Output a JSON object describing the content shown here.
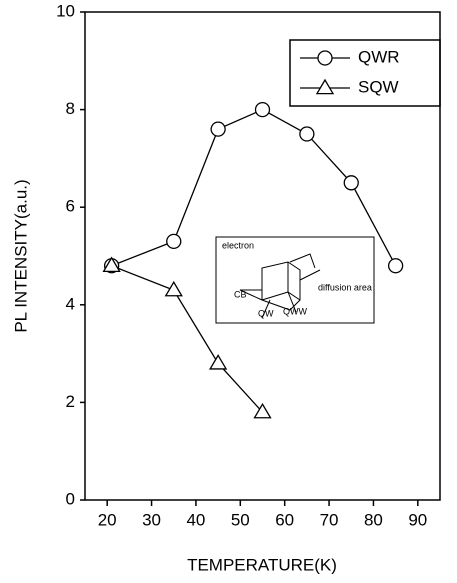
{
  "chart_data": {
    "type": "line",
    "xlabel": "TEMPERATURE(K)",
    "ylabel": "PL INTENSITY(a.u.)",
    "xlim": [
      15,
      95
    ],
    "xticks": [
      20,
      30,
      40,
      50,
      60,
      70,
      80,
      90
    ],
    "ylim": [
      0,
      10
    ],
    "yticks": [
      0,
      2,
      4,
      6,
      8,
      10
    ],
    "grid": false,
    "legend": "upper right",
    "series": [
      {
        "name": "QWR",
        "color": "#000000",
        "marker": "circle",
        "x": [
          21,
          35,
          45,
          55,
          65,
          75,
          85
        ],
        "values": [
          4.8,
          5.3,
          7.6,
          8.0,
          7.5,
          6.5,
          4.8
        ]
      },
      {
        "name": "SQW",
        "color": "#000000",
        "marker": "triangle",
        "x": [
          21,
          35,
          45,
          55
        ],
        "values": [
          4.8,
          4.3,
          2.8,
          1.8
        ]
      }
    ],
    "inset_labels": [
      "electron",
      "CB",
      "QW",
      "QWW",
      "diffusion area"
    ]
  }
}
